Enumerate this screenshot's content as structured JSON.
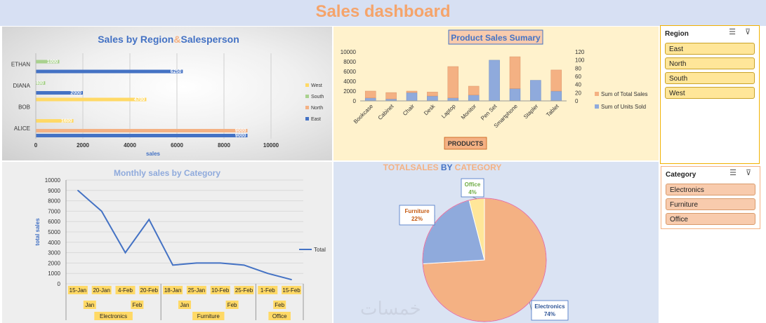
{
  "dashboard": {
    "title": "Sales dashboard"
  },
  "region_chart": {
    "title_part1": "Sales by Region",
    "title_amp": "&",
    "title_part2": "Salesperson",
    "xlabel": "sales",
    "colors": {
      "West": "#ffd966",
      "South": "#a9d18e",
      "North": "#f4b183",
      "East": "#4472c4"
    },
    "chart_data": {
      "type": "bar",
      "orientation": "horizontal",
      "categories": [
        "ALICE",
        "BOB",
        "DIANA",
        "ETHAN"
      ],
      "series": [
        {
          "name": "West",
          "values": [
            1600,
            4700,
            null,
            null
          ]
        },
        {
          "name": "South",
          "values": [
            null,
            null,
            400,
            1000
          ]
        },
        {
          "name": "North",
          "values": [
            9000,
            null,
            null,
            null
          ]
        },
        {
          "name": "East",
          "values": [
            9000,
            null,
            2000,
            6250
          ]
        }
      ],
      "data_labels": {
        "West": [
          "1600",
          "4700",
          "",
          ""
        ],
        "South": [
          "",
          "",
          "400",
          "1000"
        ],
        "North": [
          "9000",
          "",
          "",
          ""
        ],
        "East": [
          "9000",
          "",
          "2000",
          "6250"
        ]
      },
      "xlim": [
        0,
        10000
      ],
      "xticks": [
        "0",
        "2000",
        "4000",
        "6000",
        "8000",
        "10000"
      ],
      "legend": [
        "West",
        "South",
        "North",
        "East"
      ],
      "legend_position": "right"
    }
  },
  "product_chart": {
    "title": "Product Sales Sumary",
    "axis_button": "PRODUCTS",
    "colors": {
      "Sum of Total Sales": "#f4b183",
      "Sum of Units Sold": "#8faadc"
    },
    "chart_data": {
      "type": "bar",
      "stacked": true,
      "categories": [
        "Bookcase",
        "Cabinet",
        "Chair",
        "Desk",
        "Laptop",
        "Monitor",
        "Pen Set",
        "Smartphone",
        "Stapler",
        "Tablet"
      ],
      "series": [
        {
          "name": "Sum of Units Sold",
          "values": [
            600,
            400,
            1700,
            1000,
            600,
            1200,
            8300,
            2500,
            4200,
            2000
          ]
        },
        {
          "name": "Sum of Total Sales",
          "values": [
            1400,
            1300,
            300,
            800,
            6400,
            1800,
            0,
            6500,
            0,
            4300
          ]
        }
      ],
      "ylim_left": [
        0,
        10000
      ],
      "yticks_left": [
        "0",
        "2000",
        "4000",
        "6000",
        "8000",
        "10000"
      ],
      "ylim_right": [
        0,
        120
      ],
      "yticks_right": [
        "0",
        "20",
        "40",
        "60",
        "80",
        "100",
        "120"
      ],
      "legend": [
        "Sum of Total Sales",
        "Sum of Units Sold"
      ],
      "legend_position": "right"
    }
  },
  "monthly_chart": {
    "title": "Monthly sales by Category",
    "ylabel": "total sales",
    "line_color": "#4472c4",
    "chart_data": {
      "type": "line",
      "x": [
        "15-Jan",
        "20-Jan",
        "4-Feb",
        "20-Feb",
        "18-Jan",
        "25-Jan",
        "10-Feb",
        "25-Feb",
        "1-Feb",
        "15-Feb"
      ],
      "months": [
        {
          "label": "Jan",
          "span": [
            0,
            1
          ]
        },
        {
          "label": "Feb",
          "span": [
            2,
            3
          ]
        },
        {
          "label": "Jan",
          "span": [
            4,
            5
          ]
        },
        {
          "label": "Feb",
          "span": [
            6,
            7
          ]
        },
        {
          "label": "Feb",
          "span": [
            8,
            9
          ]
        }
      ],
      "categories": [
        {
          "label": "Electronics",
          "span": [
            0,
            3
          ]
        },
        {
          "label": "Furniture",
          "span": [
            4,
            7
          ]
        },
        {
          "label": "Office",
          "span": [
            8,
            9
          ]
        }
      ],
      "series": [
        {
          "name": "Total",
          "values": [
            9000,
            7000,
            3000,
            6200,
            1800,
            2000,
            2000,
            1800,
            1000,
            400
          ]
        }
      ],
      "ylim": [
        0,
        10000
      ],
      "yticks": [
        "0",
        "1000",
        "2000",
        "3000",
        "4000",
        "5000",
        "6000",
        "7000",
        "8000",
        "9000",
        "10000"
      ],
      "legend": [
        "Total"
      ],
      "legend_position": "right"
    }
  },
  "category_pie": {
    "title_part1": "TOTALSALES",
    "title_part2": " BY ",
    "title_part3": "CATEGORY",
    "colors": {
      "Electronics": "#f4b183",
      "Furniture": "#8faadc",
      "Office": "#ffe699"
    },
    "label_colors": {
      "Electronics": "#2f5597",
      "Furniture": "#c55a11",
      "Office": "#70ad47"
    },
    "chart_data": {
      "type": "pie",
      "slices": [
        {
          "label": "Electronics",
          "value": 74,
          "pct": "74%"
        },
        {
          "label": "Furniture",
          "value": 22,
          "pct": "22%"
        },
        {
          "label": "Office",
          "value": 4,
          "pct": "4%"
        }
      ]
    }
  },
  "region_slicer": {
    "header": "Region",
    "items": [
      "East",
      "North",
      "South",
      "West"
    ]
  },
  "category_slicer": {
    "header": "Category",
    "items": [
      "Electronics",
      "Furniture",
      "Office"
    ]
  },
  "watermark": {
    "text": "خمسات"
  }
}
